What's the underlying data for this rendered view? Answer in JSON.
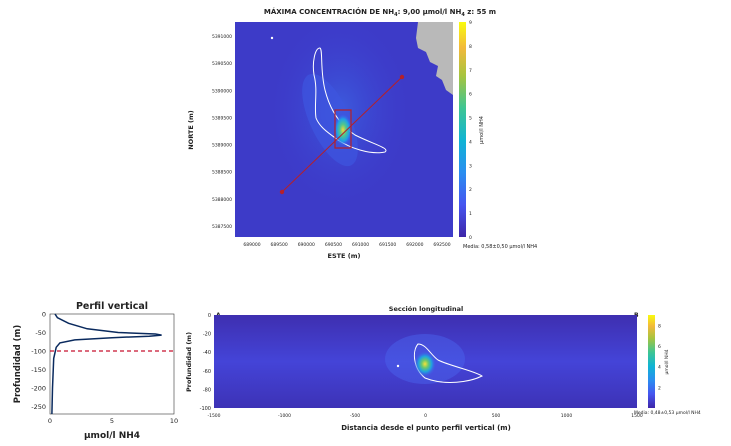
{
  "chart_data": [
    {
      "type": "heatmap",
      "title_html_parts": {
        "pre": "MÁXIMA CONCENTRACIÓN DE NH",
        "sub1": "4",
        "mid": ": 9,00 μmol/l NH",
        "sub2": "4",
        "post": " z: 55 m"
      },
      "ylabel": "NORTE (m)",
      "xlabel": "ESTE (m)",
      "y_ticks": [
        "5391000",
        "5390500",
        "5390000",
        "5389500",
        "5389000",
        "5388500",
        "5388000",
        "5387500"
      ],
      "x_ticks": [
        "689000",
        "689500",
        "690000",
        "690500",
        "691000",
        "691500",
        "692000",
        "692500"
      ],
      "colorbar": {
        "label": "μmol/l NH4",
        "ticks": [
          "0",
          "1",
          "2",
          "3",
          "4",
          "5",
          "6",
          "7",
          "8",
          "9"
        ],
        "min": 0,
        "max": 9
      },
      "mean_text": "Media: 0,58±0,50 μmol/l NH4",
      "land_color": "#b9b9b9"
    },
    {
      "type": "line",
      "title": "Perfil vertical",
      "ylabel": "Profundidad (m)",
      "xlabel": "μmol/l NH4",
      "x_ticks": [
        "0",
        "5",
        "10"
      ],
      "xlim": [
        0,
        10
      ],
      "y_ticks": [
        "0",
        "-50",
        "-100",
        "-150",
        "-200",
        "-250"
      ],
      "ylim": [
        -270,
        0
      ],
      "threshold_depth": -100,
      "series": [
        {
          "x": [
            0.4,
            0.6,
            1.5,
            3.0,
            5.5,
            8.5,
            9.0,
            8.0,
            5.0,
            2.0,
            0.8,
            0.5,
            0.3,
            0.2,
            0.15
          ],
          "y": [
            0,
            -10,
            -25,
            -40,
            -50,
            -54,
            -57,
            -60,
            -64,
            -70,
            -78,
            -90,
            -120,
            -200,
            -270
          ]
        }
      ]
    },
    {
      "type": "heatmap",
      "title": "Sección longitudinal",
      "corner_left": "A",
      "corner_right": "B",
      "ylabel": "Profundidad (m)",
      "xlabel": "Distancia desde el punto perfil vertical (m)",
      "x_ticks": [
        "-1500",
        "-1000",
        "-500",
        "0",
        "500",
        "1000",
        "1500"
      ],
      "xlim": [
        -1500,
        1500
      ],
      "y_ticks": [
        "0",
        "-20",
        "-40",
        "-60",
        "-80",
        "-100"
      ],
      "ylim": [
        -100,
        0
      ],
      "colorbar": {
        "label": "μmol/l NH4",
        "ticks": [
          "2",
          "4",
          "6",
          "8"
        ],
        "min": 0,
        "max": 9
      },
      "mean_text": "Media: 0,48±0,53 μmol/l NH4"
    }
  ]
}
